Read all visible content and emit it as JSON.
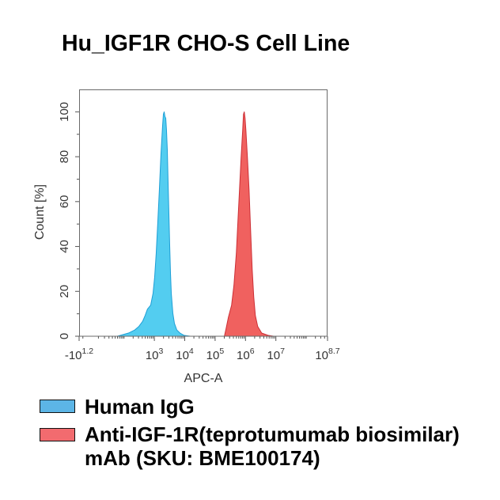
{
  "chart_data": {
    "type": "area",
    "title": "Hu_IGF1R CHO-S Cell Line",
    "xlabel": "APC-A",
    "ylabel": "Count [%]",
    "xscale": "biexponential",
    "xlim": [
      -15.85,
      501187234
    ],
    "ylim": [
      0,
      110
    ],
    "grid": false,
    "legend_position": "below",
    "x_ticks": [
      {
        "value": -15.85,
        "base": "-10",
        "exp": "1.2"
      },
      {
        "value": 1000,
        "base": "10",
        "exp": "3"
      },
      {
        "value": 10000,
        "base": "10",
        "exp": "4"
      },
      {
        "value": 100000,
        "base": "10",
        "exp": "5"
      },
      {
        "value": 1000000,
        "base": "10",
        "exp": "6"
      },
      {
        "value": 10000000,
        "base": "10",
        "exp": "7"
      },
      {
        "value": 501187234,
        "base": "10",
        "exp": "8.7"
      }
    ],
    "y_ticks": [
      0,
      20,
      40,
      60,
      80,
      100
    ],
    "series": [
      {
        "name": "Human IgG",
        "fill": "#53cdf0",
        "stroke": "#1e9fd6",
        "swatch": "#5cb5e6",
        "x": [
          59,
          91,
          140,
          227,
          306,
          413,
          495,
          593,
          755,
          904,
          1020,
          1150,
          1300,
          1460,
          1650,
          1860,
          1980,
          2100,
          2230,
          2370,
          2510,
          2670,
          2830,
          3010,
          3200,
          3400,
          3610,
          4060,
          4580,
          5480,
          6980,
          9440,
          15200
        ],
        "y": [
          0,
          0.7,
          1.4,
          2.8,
          4.3,
          6.7,
          9.2,
          12.1,
          13.8,
          19.1,
          26.2,
          36.9,
          51.1,
          65.2,
          81.2,
          93.6,
          98.9,
          100,
          97.9,
          97.2,
          91.8,
          83.0,
          68.8,
          54.6,
          40.4,
          28.0,
          19.1,
          10.3,
          5.7,
          2.8,
          1.4,
          0.4,
          0
        ]
      },
      {
        "name": "Anti-IGF-1R(teprotumumab biosimilar)\nmAb (SKU: BME100174)",
        "fill": "#f0615f",
        "stroke": "#cc2f36",
        "swatch": "#f26b6f",
        "x": [
          202000,
          228000,
          274000,
          348000,
          416000,
          499000,
          562000,
          634000,
          715000,
          807000,
          857000,
          910000,
          966000,
          1030000,
          1160000,
          1310000,
          1470000,
          1660000,
          1870000,
          2110000,
          2530000,
          3410000,
          5520000,
          8410000
        ],
        "y": [
          0,
          3.2,
          8.5,
          13.8,
          22.7,
          36.9,
          51.1,
          65.2,
          79.4,
          91.8,
          98.9,
          100,
          97.2,
          91.8,
          79.4,
          65.2,
          47.5,
          29.8,
          17.4,
          9.2,
          4.3,
          1.4,
          0.4,
          0
        ]
      }
    ]
  }
}
